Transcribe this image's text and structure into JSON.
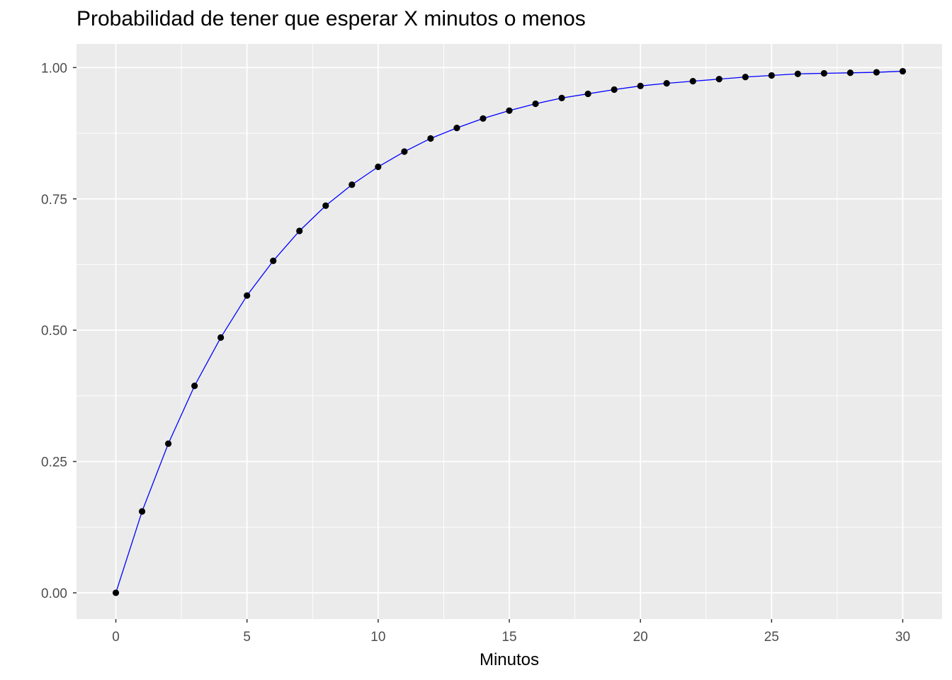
{
  "chart_data": {
    "type": "line",
    "title": "Probabilidad de tener que esperar X minutos o menos",
    "xlabel": "Minutos",
    "ylabel": "",
    "xlim": [
      -1.5,
      31.5
    ],
    "ylim": [
      -0.05,
      1.045
    ],
    "x_ticks": [
      0,
      5,
      10,
      15,
      20,
      25,
      30
    ],
    "x_tick_labels": [
      "0",
      "5",
      "10",
      "15",
      "20",
      "25",
      "30"
    ],
    "y_ticks": [
      0,
      0.25,
      0.5,
      0.75,
      1
    ],
    "y_tick_labels": [
      "0.00",
      "0.25",
      "0.50",
      "0.75",
      "1.00"
    ],
    "grid": true,
    "line_color": "#0000ff",
    "point_color": "#000000",
    "panel_background": "#ebebeb",
    "series": [
      {
        "x": [
          0,
          1,
          2,
          3,
          4,
          5,
          6,
          7,
          8,
          9,
          10,
          11,
          12,
          13,
          14,
          15,
          16,
          17,
          18,
          19,
          20,
          21,
          22,
          23,
          24,
          25,
          26,
          27,
          28,
          29,
          30
        ],
        "y": [
          0.0,
          0.155,
          0.284,
          0.394,
          0.486,
          0.566,
          0.632,
          0.689,
          0.737,
          0.777,
          0.811,
          0.84,
          0.865,
          0.885,
          0.903,
          0.918,
          0.931,
          0.942,
          0.95,
          0.958,
          0.965,
          0.97,
          0.974,
          0.978,
          0.982,
          0.985,
          0.988,
          0.989,
          0.99,
          0.991,
          0.993
        ]
      }
    ]
  }
}
